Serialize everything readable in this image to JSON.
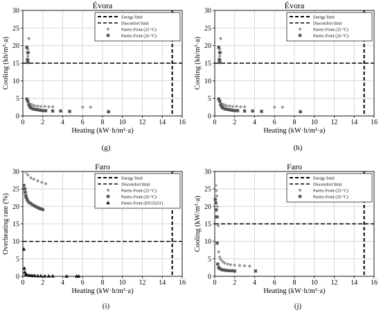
{
  "chart_data": [
    {
      "type": "scatter",
      "title": "Évora",
      "panel_label": "(g)",
      "xlabel": "Heating (kW·h/m²·a)",
      "ylabel": "Cooling (kh/m²·a)",
      "xlim": [
        0,
        16
      ],
      "ylim": [
        0,
        30
      ],
      "xticks": [
        0,
        2,
        4,
        6,
        8,
        10,
        12,
        14,
        16
      ],
      "yticks": [
        0,
        5,
        10,
        15,
        20,
        25,
        30
      ],
      "grid": true,
      "legend_position": "top-right",
      "limits": [
        {
          "name": "Energy limit",
          "axis": "x",
          "value": 15
        },
        {
          "name": "Disconfort limit",
          "axis": "y",
          "value": 15
        }
      ],
      "series": [
        {
          "name": "Pareto Front (25 °C)",
          "marker": "diamond",
          "color": "#9a9a9a",
          "points": [
            [
              0.6,
              22
            ],
            [
              0.5,
              19
            ],
            [
              0.6,
              18
            ],
            [
              0.5,
              17
            ],
            [
              0.55,
              16
            ],
            [
              0.5,
              15.5
            ],
            [
              0.6,
              3.6
            ],
            [
              0.7,
              3.4
            ],
            [
              0.9,
              3.2
            ],
            [
              1.0,
              3.0
            ],
            [
              1.2,
              2.9
            ],
            [
              1.5,
              2.8
            ],
            [
              1.8,
              2.7
            ],
            [
              2.2,
              2.7
            ],
            [
              2.6,
              2.6
            ],
            [
              3.0,
              2.6
            ],
            [
              6.0,
              2.5
            ],
            [
              6.8,
              2.5
            ]
          ]
        },
        {
          "name": "Pareto Front (26 °C)",
          "marker": "square",
          "color": "#555555",
          "points": [
            [
              0.4,
              19.5
            ],
            [
              0.5,
              18
            ],
            [
              0.45,
              16
            ],
            [
              0.5,
              15.2
            ],
            [
              0.4,
              4.8
            ],
            [
              0.5,
              4.2
            ],
            [
              0.6,
              3.2
            ],
            [
              0.7,
              2.6
            ],
            [
              0.8,
              2.3
            ],
            [
              1.0,
              2.0
            ],
            [
              1.2,
              1.9
            ],
            [
              1.4,
              1.8
            ],
            [
              1.6,
              1.7
            ],
            [
              1.8,
              1.6
            ],
            [
              2.0,
              1.5
            ],
            [
              2.3,
              1.5
            ],
            [
              3.0,
              1.4
            ],
            [
              3.8,
              1.4
            ],
            [
              4.7,
              1.3
            ],
            [
              8.6,
              1.2
            ]
          ]
        }
      ]
    },
    {
      "type": "scatter",
      "title": "Évora",
      "panel_label": "(h)",
      "xlabel": "Heating (kW·h/m²·a)",
      "ylabel": "Cooling (kh/m²·a)",
      "xlim": [
        0,
        16
      ],
      "ylim": [
        0,
        30
      ],
      "xticks": [
        0,
        2,
        4,
        6,
        8,
        10,
        12,
        14,
        16
      ],
      "yticks": [
        0,
        5,
        10,
        15,
        20,
        25,
        30
      ],
      "grid": true,
      "legend_position": "top-right",
      "limits": [
        {
          "name": "Energy limit",
          "axis": "x",
          "value": 15
        },
        {
          "name": "Discomfort limit",
          "axis": "y",
          "value": 15
        }
      ],
      "series": [
        {
          "name": "Pareto Front (25 °C)",
          "marker": "diamond",
          "color": "#9a9a9a",
          "points": [
            [
              0.6,
              22
            ],
            [
              0.5,
              19
            ],
            [
              0.6,
              18
            ],
            [
              0.5,
              17
            ],
            [
              0.55,
              16
            ],
            [
              0.5,
              15.5
            ],
            [
              0.6,
              3.6
            ],
            [
              0.7,
              3.4
            ],
            [
              0.9,
              3.2
            ],
            [
              1.0,
              3.0
            ],
            [
              1.2,
              2.9
            ],
            [
              1.5,
              2.8
            ],
            [
              1.8,
              2.7
            ],
            [
              2.2,
              2.7
            ],
            [
              2.6,
              2.6
            ],
            [
              3.0,
              2.6
            ],
            [
              6.0,
              2.5
            ],
            [
              6.8,
              2.5
            ]
          ]
        },
        {
          "name": "Pareto Front (26 °C)",
          "marker": "square",
          "color": "#555555",
          "points": [
            [
              0.4,
              19.5
            ],
            [
              0.5,
              18
            ],
            [
              0.45,
              16
            ],
            [
              0.5,
              15.2
            ],
            [
              0.4,
              4.8
            ],
            [
              0.5,
              4.2
            ],
            [
              0.6,
              3.2
            ],
            [
              0.7,
              2.6
            ],
            [
              0.8,
              2.3
            ],
            [
              1.0,
              2.0
            ],
            [
              1.2,
              1.9
            ],
            [
              1.4,
              1.8
            ],
            [
              1.6,
              1.7
            ],
            [
              1.8,
              1.6
            ],
            [
              2.0,
              1.5
            ],
            [
              2.3,
              1.5
            ],
            [
              3.0,
              1.4
            ],
            [
              3.8,
              1.4
            ],
            [
              4.7,
              1.3
            ],
            [
              8.6,
              1.2
            ]
          ]
        }
      ]
    },
    {
      "type": "scatter",
      "title": "Faro",
      "panel_label": "(i)",
      "xlabel": "Heating (kW·h/m²·a)",
      "ylabel": "Overheating rate (%)",
      "xlim": [
        0,
        16
      ],
      "ylim": [
        0,
        30
      ],
      "xticks": [
        0,
        2,
        4,
        6,
        8,
        10,
        12,
        14,
        16
      ],
      "yticks": [
        0,
        5,
        10,
        15,
        20,
        25,
        30
      ],
      "grid": true,
      "legend_position": "top-right",
      "limits": [
        {
          "name": "Energy limit",
          "axis": "x",
          "value": 15
        },
        {
          "name": "Discomfort limit",
          "axis": "y",
          "value": 10
        }
      ],
      "series": [
        {
          "name": "Pareto Front (25 °C)",
          "marker": "diamond",
          "color": "#9a9a9a",
          "points": [
            [
              0.3,
              29.8
            ],
            [
              0.5,
              29
            ],
            [
              0.8,
              28.2
            ],
            [
              1.1,
              27.8
            ],
            [
              1.5,
              27.3
            ],
            [
              1.9,
              26.9
            ],
            [
              2.3,
              26.5
            ]
          ]
        },
        {
          "name": "Pareto Front (26 °C)",
          "marker": "square",
          "color": "#555555",
          "points": [
            [
              0.1,
              26
            ],
            [
              0.2,
              25
            ],
            [
              0.25,
              24
            ],
            [
              0.3,
              23
            ],
            [
              0.35,
              22.5
            ],
            [
              0.45,
              21.8
            ],
            [
              0.6,
              21.2
            ],
            [
              0.8,
              20.8
            ],
            [
              1.0,
              20.4
            ],
            [
              1.2,
              20.1
            ],
            [
              1.4,
              19.8
            ],
            [
              1.6,
              19.5
            ],
            [
              1.8,
              19.3
            ],
            [
              2.0,
              19.1
            ]
          ]
        },
        {
          "name": "Pareto Front (EN15251)",
          "marker": "triangle",
          "color": "#111111",
          "points": [
            [
              0.1,
              7.8
            ],
            [
              0.15,
              2.3
            ],
            [
              0.2,
              1.2
            ],
            [
              0.3,
              0.6
            ],
            [
              0.4,
              0.4
            ],
            [
              0.6,
              0.3
            ],
            [
              0.8,
              0.25
            ],
            [
              1.0,
              0.2
            ],
            [
              1.2,
              0.2
            ],
            [
              1.5,
              0.15
            ],
            [
              1.8,
              0.15
            ],
            [
              2.2,
              0.1
            ],
            [
              2.6,
              0.1
            ],
            [
              3.0,
              0.1
            ],
            [
              4.4,
              0.05
            ],
            [
              5.4,
              0.05
            ],
            [
              5.6,
              0.05
            ]
          ]
        }
      ]
    },
    {
      "type": "scatter",
      "title": "Faro",
      "panel_label": "(j)",
      "xlabel": "Heating (kW·h/m²·a)",
      "ylabel": "Cooling (kW/m²·a)",
      "xlim": [
        0,
        16
      ],
      "ylim": [
        0,
        30
      ],
      "xticks": [
        0,
        2,
        4,
        6,
        8,
        10,
        12,
        14,
        16
      ],
      "yticks": [
        0,
        5,
        10,
        15,
        20,
        25,
        30
      ],
      "grid": true,
      "legend_position": "top-right",
      "limits": [
        {
          "name": "Energy limit",
          "axis": "x",
          "value": 15
        },
        {
          "name": "Discomfort limit",
          "axis": "y",
          "value": 15
        }
      ],
      "series": [
        {
          "name": "Pareto Front (25 °C)",
          "marker": "diamond",
          "color": "#9a9a9a",
          "points": [
            [
              0.1,
              26
            ],
            [
              0.15,
              24.5
            ],
            [
              0.2,
              23
            ],
            [
              0.25,
              20
            ],
            [
              0.3,
              17
            ],
            [
              0.35,
              14.5
            ],
            [
              0.4,
              7
            ],
            [
              0.5,
              5.5
            ],
            [
              0.6,
              4.8
            ],
            [
              0.8,
              4.2
            ],
            [
              1.0,
              3.8
            ],
            [
              1.3,
              3.5
            ],
            [
              1.6,
              3.3
            ],
            [
              2.0,
              3.2
            ],
            [
              2.5,
              3.1
            ],
            [
              3.0,
              3.0
            ],
            [
              3.5,
              2.9
            ]
          ]
        },
        {
          "name": "Pareto Front (26 °C)",
          "marker": "square",
          "color": "#555555",
          "points": [
            [
              0.05,
              22
            ],
            [
              0.1,
              21
            ],
            [
              0.15,
              19
            ],
            [
              0.2,
              17
            ],
            [
              0.25,
              9.5
            ],
            [
              0.3,
              3.5
            ],
            [
              0.4,
              2.5
            ],
            [
              0.5,
              2.2
            ],
            [
              0.7,
              1.9
            ],
            [
              0.9,
              1.8
            ],
            [
              1.1,
              1.7
            ],
            [
              1.4,
              1.6
            ],
            [
              1.7,
              1.6
            ],
            [
              2.0,
              1.5
            ],
            [
              4.1,
              1.5
            ]
          ]
        }
      ]
    }
  ]
}
